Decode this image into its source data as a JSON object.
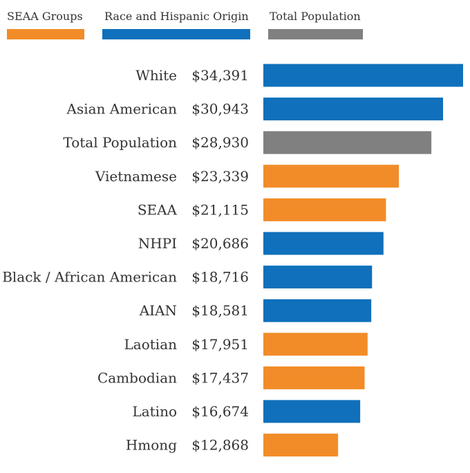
{
  "chart_data": {
    "type": "bar",
    "orientation": "horizontal",
    "title": "",
    "xlabel": "",
    "ylabel": "",
    "grid": false,
    "legend_position": "top",
    "legend": [
      {
        "key": "seaa",
        "label": "SEAA Groups",
        "color": "#f28c28"
      },
      {
        "key": "race",
        "label": "Race and Hispanic Origin",
        "color": "#1070bb"
      },
      {
        "key": "total",
        "label": "Total Population",
        "color": "#808080"
      }
    ],
    "categories": [
      "White",
      "Asian American",
      "Total Population",
      "Vietnamese",
      "SEAA",
      "NHPI",
      "Black / African American",
      "AIAN",
      "Laotian",
      "Cambodian",
      "Latino",
      "Hmong"
    ],
    "values": [
      34391,
      30943,
      28930,
      23339,
      21115,
      20686,
      18716,
      18581,
      17951,
      17437,
      16674,
      12868
    ],
    "value_labels": [
      "$34,391",
      "$30,943",
      "$28,930",
      "$23,339",
      "$21,115",
      "$20,686",
      "$18,716",
      "$18,581",
      "$17,951",
      "$17,437",
      "$16,674",
      "$12,868"
    ],
    "groups": [
      "race",
      "race",
      "total",
      "seaa",
      "seaa",
      "race",
      "race",
      "race",
      "seaa",
      "seaa",
      "race",
      "seaa"
    ],
    "xlim": [
      0,
      34391
    ]
  }
}
